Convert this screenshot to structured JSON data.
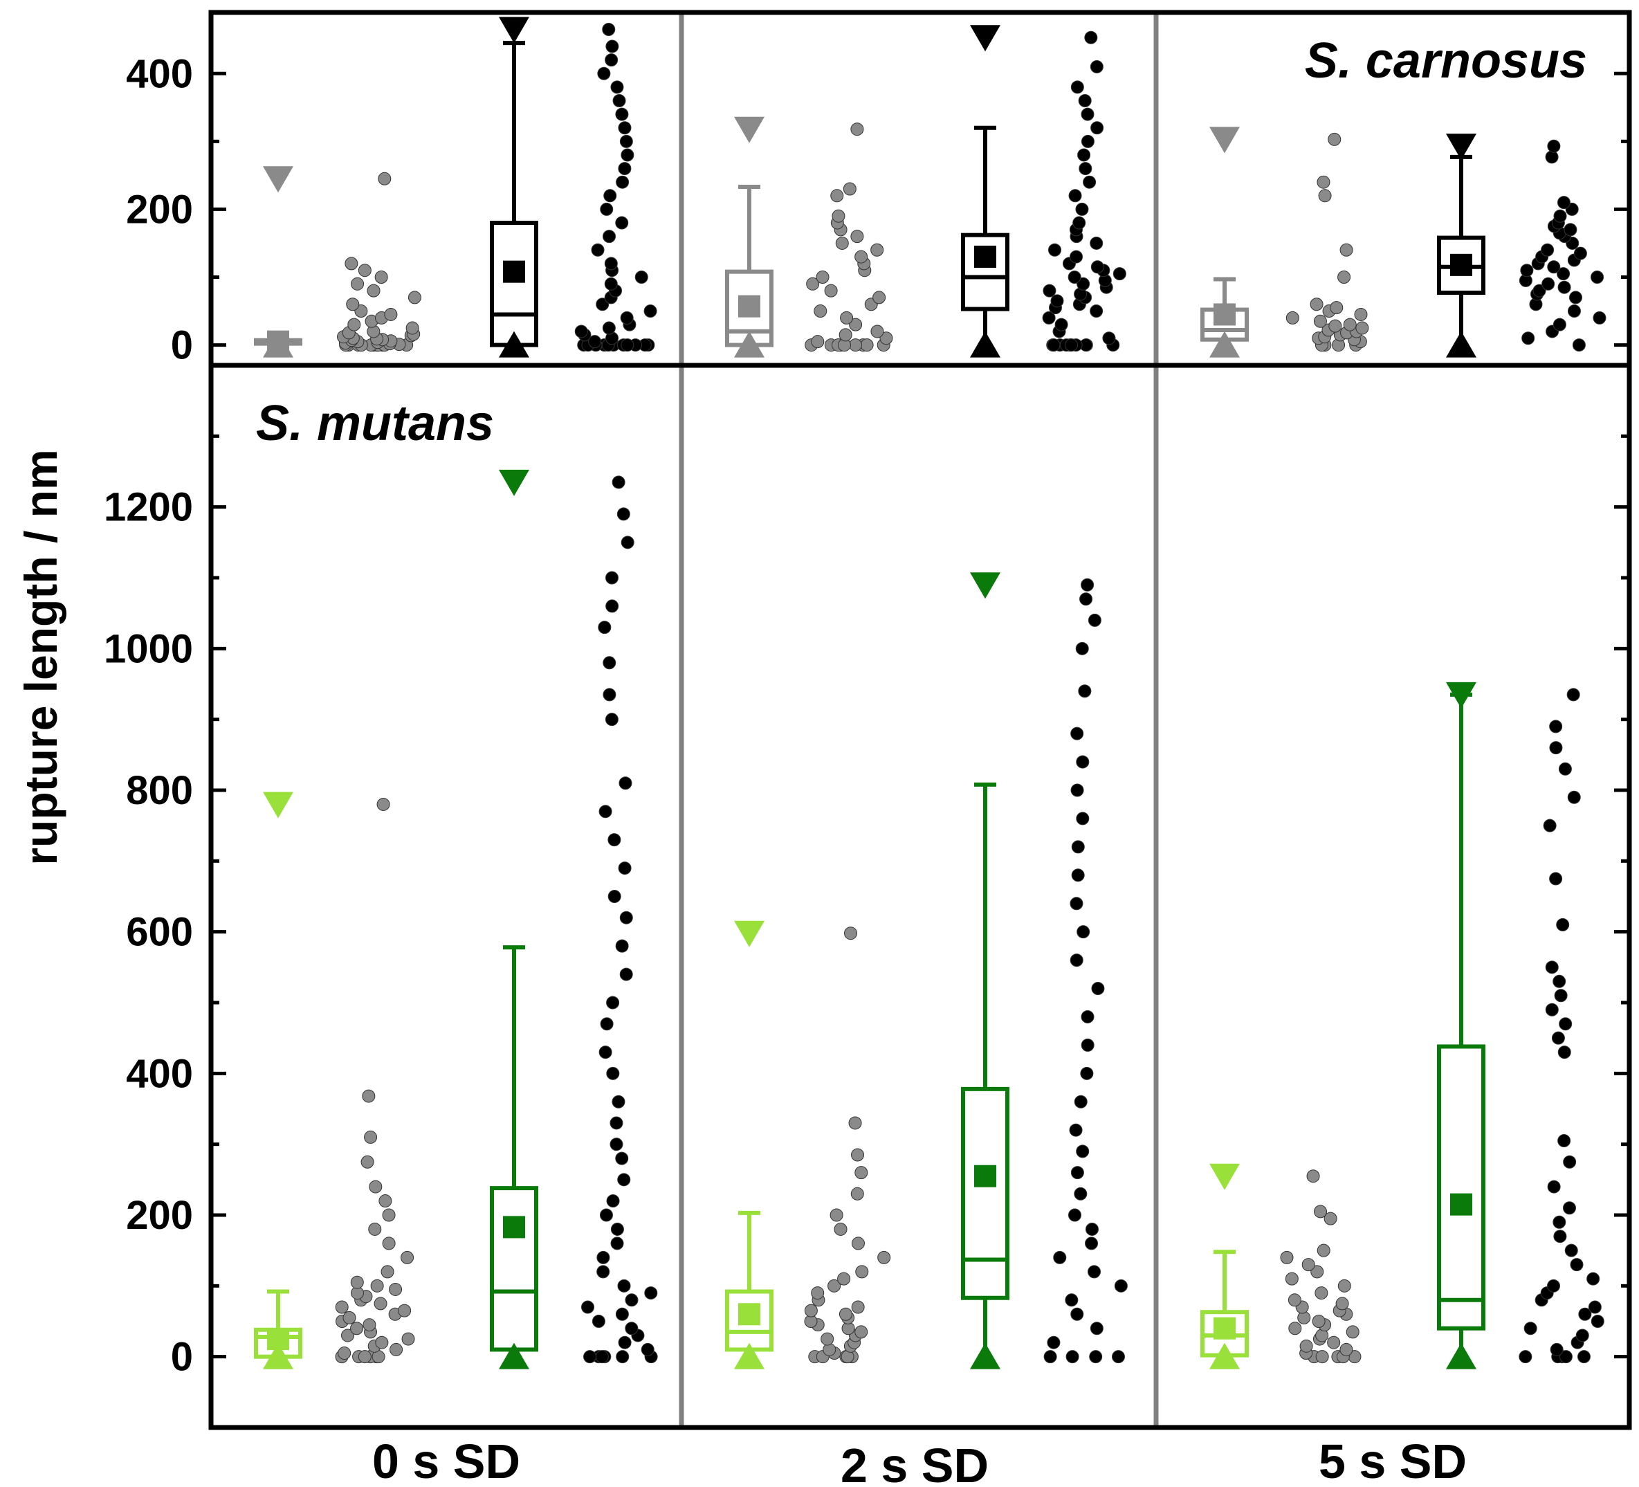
{
  "colors": {
    "frame": "#000000",
    "divider": "#808080",
    "light_green": "#99e03a",
    "dark_green": "#0a7a0a",
    "gray": "#8a8a8a",
    "black": "#000000"
  },
  "chart_data": [
    {
      "type": "box",
      "panel": "top",
      "label": "S. carnosus",
      "ylabel": "rupture length / nm",
      "ylim": [
        -30,
        490
      ],
      "yticks": [
        0,
        200,
        400
      ],
      "groups": [
        "0 s SD",
        "2 s SD",
        "5 s SD"
      ],
      "series": [
        {
          "name": "0 s SD gray",
          "group": "0 s SD",
          "color": "gray",
          "min": 0,
          "max": 245,
          "q1": 2,
          "median": 5,
          "q3": 7,
          "mean": 5,
          "whisker_low": 0,
          "whisker_high": 7,
          "points": [
            0,
            0,
            0,
            0,
            0,
            0,
            0,
            0,
            0,
            0,
            0,
            1,
            2,
            3,
            4,
            5,
            6,
            7,
            8,
            9,
            10,
            12,
            14,
            16,
            18,
            20,
            25,
            30,
            35,
            40,
            45,
            50,
            60,
            70,
            80,
            90,
            100,
            110,
            120,
            245
          ]
        },
        {
          "name": "0 s SD black",
          "group": "0 s SD",
          "color": "black",
          "min": 0,
          "max": 465,
          "q1": 0,
          "median": 45,
          "q3": 180,
          "mean": 108,
          "whisker_low": 0,
          "whisker_high": 445,
          "points": [
            0,
            0,
            0,
            0,
            0,
            0,
            0,
            0,
            0,
            0,
            0,
            0,
            0,
            5,
            10,
            15,
            20,
            25,
            30,
            40,
            50,
            60,
            70,
            80,
            90,
            100,
            110,
            120,
            140,
            160,
            180,
            200,
            220,
            240,
            260,
            280,
            300,
            320,
            340,
            360,
            380,
            400,
            420,
            440,
            465
          ]
        },
        {
          "name": "2 s SD gray",
          "group": "2 s SD",
          "color": "gray",
          "min": 0,
          "max": 318,
          "q1": 0,
          "median": 20,
          "q3": 108,
          "mean": 57,
          "whisker_low": 0,
          "whisker_high": 233,
          "points": [
            0,
            0,
            0,
            0,
            0,
            0,
            0,
            0,
            0,
            5,
            10,
            15,
            20,
            30,
            40,
            50,
            60,
            70,
            80,
            90,
            100,
            110,
            120,
            130,
            140,
            150,
            160,
            170,
            180,
            190,
            220,
            230,
            318
          ]
        },
        {
          "name": "2 s SD black",
          "group": "2 s SD",
          "color": "black",
          "min": 0,
          "max": 453,
          "q1": 53,
          "median": 100,
          "q3": 162,
          "mean": 130,
          "whisker_low": 0,
          "whisker_high": 320,
          "points": [
            0,
            0,
            0,
            0,
            0,
            0,
            0,
            0,
            0,
            0,
            10,
            20,
            30,
            40,
            50,
            55,
            60,
            65,
            70,
            75,
            80,
            85,
            90,
            95,
            100,
            105,
            110,
            115,
            120,
            130,
            140,
            150,
            160,
            170,
            180,
            200,
            220,
            240,
            260,
            280,
            300,
            320,
            340,
            360,
            380,
            410,
            453
          ]
        },
        {
          "name": "5 s SD gray",
          "group": "5 s SD",
          "color": "gray",
          "min": 0,
          "max": 303,
          "q1": 8,
          "median": 22,
          "q3": 52,
          "mean": 45,
          "whisker_low": 0,
          "whisker_high": 97,
          "points": [
            0,
            0,
            0,
            0,
            5,
            8,
            10,
            12,
            15,
            18,
            20,
            22,
            25,
            28,
            30,
            35,
            40,
            45,
            50,
            55,
            60,
            100,
            140,
            220,
            240,
            303
          ]
        },
        {
          "name": "5 s SD black",
          "group": "5 s SD",
          "color": "black",
          "min": 0,
          "max": 293,
          "q1": 77,
          "median": 115,
          "q3": 158,
          "mean": 118,
          "whisker_low": 0,
          "whisker_high": 277,
          "points": [
            0,
            10,
            20,
            30,
            40,
            50,
            60,
            70,
            75,
            80,
            85,
            90,
            95,
            100,
            105,
            110,
            115,
            120,
            125,
            130,
            135,
            140,
            150,
            160,
            165,
            170,
            175,
            180,
            190,
            200,
            210,
            277,
            293
          ]
        }
      ]
    },
    {
      "type": "box",
      "panel": "bottom",
      "label": "S. mutans",
      "ylabel": "rupture length / nm",
      "ylim": [
        -100,
        1400
      ],
      "yticks": [
        0,
        200,
        400,
        600,
        800,
        1000,
        1200
      ],
      "groups": [
        "0 s SD",
        "2 s SD",
        "5 s SD"
      ],
      "series": [
        {
          "name": "0 s SD light",
          "group": "0 s SD",
          "color": "light_green",
          "min": 0,
          "max": 780,
          "q1": 0,
          "median": 28,
          "q3": 38,
          "mean": 25,
          "whisker_low": 0,
          "whisker_high": 92,
          "points": [
            0,
            0,
            0,
            0,
            0,
            0,
            5,
            10,
            15,
            20,
            25,
            30,
            35,
            40,
            45,
            50,
            55,
            60,
            65,
            70,
            75,
            80,
            85,
            90,
            95,
            100,
            105,
            120,
            140,
            160,
            180,
            200,
            220,
            240,
            275,
            310,
            368,
            780
          ]
        },
        {
          "name": "0 s SD dark",
          "group": "0 s SD",
          "color": "dark_green",
          "min": 0,
          "max": 1235,
          "q1": 10,
          "median": 92,
          "q3": 238,
          "mean": 183,
          "whisker_low": 0,
          "whisker_high": 578,
          "points": [
            0,
            0,
            0,
            0,
            0,
            0,
            10,
            20,
            30,
            40,
            50,
            60,
            70,
            80,
            90,
            100,
            120,
            140,
            160,
            180,
            200,
            220,
            250,
            280,
            300,
            330,
            360,
            400,
            430,
            470,
            500,
            540,
            580,
            620,
            650,
            690,
            730,
            770,
            810,
            900,
            935,
            980,
            1030,
            1060,
            1100,
            1150,
            1190,
            1235
          ]
        },
        {
          "name": "2 s SD light",
          "group": "2 s SD",
          "color": "light_green",
          "min": 0,
          "max": 598,
          "q1": 10,
          "median": 35,
          "q3": 92,
          "mean": 60,
          "whisker_low": 0,
          "whisker_high": 203,
          "points": [
            0,
            0,
            0,
            0,
            0,
            5,
            10,
            15,
            20,
            25,
            30,
            35,
            40,
            45,
            50,
            55,
            60,
            65,
            70,
            80,
            90,
            100,
            110,
            120,
            140,
            160,
            180,
            200,
            230,
            260,
            285,
            330,
            598
          ]
        },
        {
          "name": "2 s SD dark",
          "group": "2 s SD",
          "color": "dark_green",
          "min": 0,
          "max": 1090,
          "q1": 83,
          "median": 137,
          "q3": 378,
          "mean": 255,
          "whisker_low": 0,
          "whisker_high": 808,
          "points": [
            0,
            0,
            0,
            0,
            20,
            40,
            60,
            80,
            100,
            120,
            140,
            160,
            180,
            200,
            230,
            260,
            290,
            320,
            360,
            400,
            440,
            480,
            520,
            560,
            600,
            640,
            680,
            720,
            760,
            800,
            840,
            880,
            940,
            1000,
            1040,
            1070,
            1090
          ]
        },
        {
          "name": "5 s SD light",
          "group": "5 s SD",
          "color": "light_green",
          "min": 0,
          "max": 255,
          "q1": 2,
          "median": 30,
          "q3": 63,
          "mean": 40,
          "whisker_low": 0,
          "whisker_high": 148,
          "points": [
            0,
            0,
            0,
            0,
            0,
            5,
            10,
            15,
            20,
            25,
            30,
            35,
            40,
            45,
            50,
            55,
            60,
            65,
            70,
            75,
            80,
            90,
            100,
            110,
            120,
            130,
            140,
            150,
            195,
            205,
            255
          ]
        },
        {
          "name": "5 s SD dark",
          "group": "5 s SD",
          "color": "dark_green",
          "min": 0,
          "max": 935,
          "q1": 40,
          "median": 80,
          "q3": 438,
          "mean": 215,
          "whisker_low": 0,
          "whisker_high": 935,
          "points": [
            0,
            0,
            0,
            0,
            0,
            10,
            20,
            30,
            40,
            50,
            60,
            70,
            80,
            90,
            100,
            110,
            130,
            150,
            170,
            190,
            210,
            240,
            275,
            305,
            430,
            450,
            470,
            490,
            510,
            530,
            550,
            610,
            675,
            750,
            790,
            830,
            860,
            890,
            935
          ]
        }
      ]
    }
  ]
}
